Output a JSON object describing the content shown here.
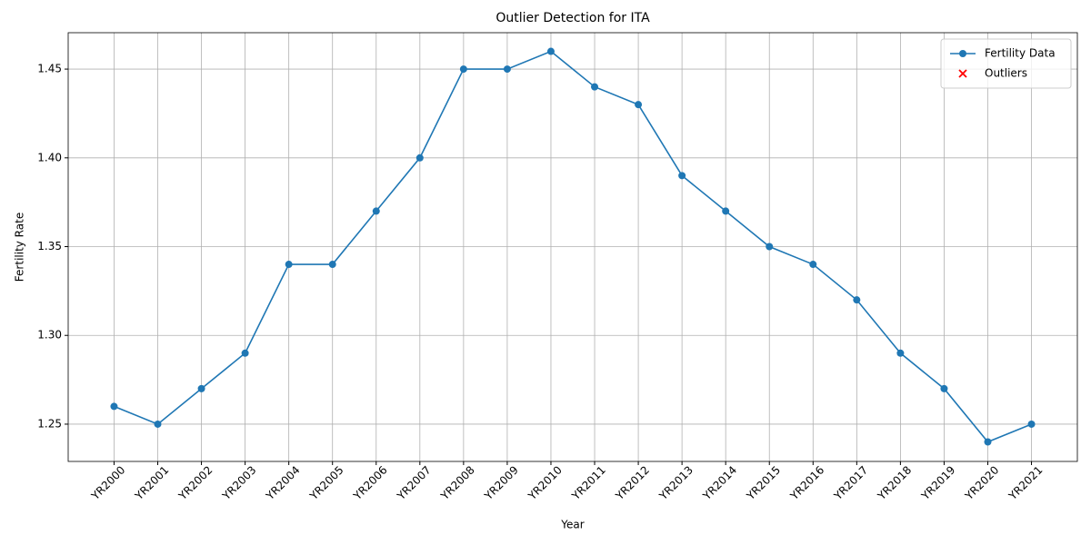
{
  "chart_data": {
    "type": "line",
    "title": "Outlier Detection for ITA",
    "x_label": "Year",
    "y_label": "Fertility Rate",
    "categories": [
      "YR2000",
      "YR2001",
      "YR2002",
      "YR2003",
      "YR2004",
      "YR2005",
      "YR2006",
      "YR2007",
      "YR2008",
      "YR2009",
      "YR2010",
      "YR2011",
      "YR2012",
      "YR2013",
      "YR2014",
      "YR2015",
      "YR2016",
      "YR2017",
      "YR2018",
      "YR2019",
      "YR2020",
      "YR2021"
    ],
    "series": [
      {
        "name": "Fertility Data",
        "color": "#1f77b4",
        "marker": "o",
        "line": true,
        "values": [
          1.26,
          1.25,
          1.27,
          1.29,
          1.34,
          1.34,
          1.37,
          1.4,
          1.45,
          1.45,
          1.46,
          1.44,
          1.43,
          1.39,
          1.37,
          1.35,
          1.34,
          1.32,
          1.29,
          1.27,
          1.24,
          1.25
        ]
      },
      {
        "name": "Outliers",
        "color": "red",
        "marker": "x",
        "line": false,
        "values": [
          null,
          null,
          null,
          null,
          null,
          null,
          null,
          null,
          null,
          null,
          null,
          null,
          null,
          null,
          null,
          null,
          null,
          null,
          null,
          null,
          null,
          null
        ]
      }
    ],
    "ylim": [
      1.229,
      1.4705
    ],
    "yticks": [
      1.25,
      {
        "value": 1.3,
        "label": "1.30"
      },
      1.35,
      {
        "value": 1.4,
        "label": "1.40"
      },
      1.45
    ],
    "grid": true,
    "legend": "upper right"
  }
}
